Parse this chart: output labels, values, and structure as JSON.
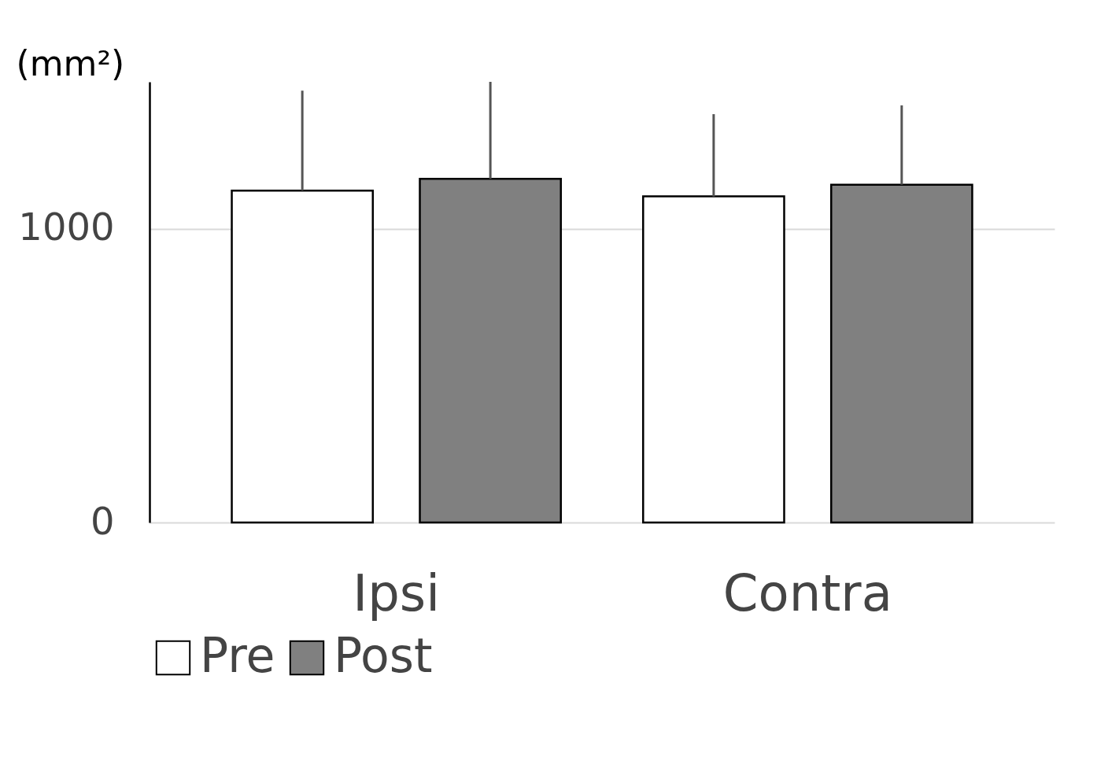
{
  "chart_data": {
    "type": "bar",
    "ylabel": "(mm²)",
    "categories": [
      "Ipsi",
      "Contra"
    ],
    "series": [
      {
        "name": "Pre",
        "color": "#ffffff",
        "values": [
          1130,
          1110
        ],
        "errors": [
          [
            1130,
            1470
          ],
          [
            1110,
            1390
          ]
        ]
      },
      {
        "name": "Post",
        "color": "#808080",
        "values": [
          1170,
          1150
        ],
        "errors": [
          [
            1170,
            1500
          ],
          [
            1150,
            1420
          ]
        ]
      }
    ],
    "ylim": [
      0,
      1500
    ],
    "yticks": [
      0,
      1000
    ],
    "grid": "y",
    "legend": "bottom"
  }
}
